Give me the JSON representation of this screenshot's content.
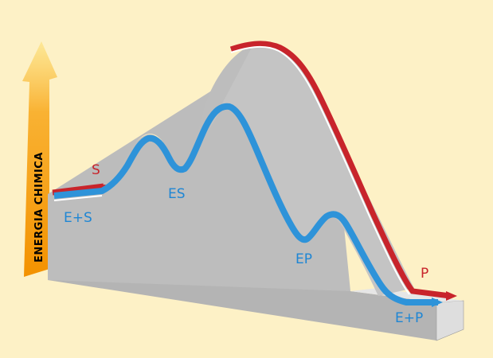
{
  "axis": {
    "label": "ENERGIA CHIMICA"
  },
  "labels": {
    "substrate": "S",
    "enzyme_substrate_start": "E+S",
    "enzyme_substrate_complex": "ES",
    "enzyme_product_complex": "EP",
    "enzyme_product_end": "E+P",
    "product": "P"
  },
  "colors": {
    "background": "#fdf1c6",
    "block_top": "#c4c4c4",
    "block_front": "#b9b9b9",
    "block_side": "#dcdcdc",
    "blue_path": "#2e93d9",
    "red_path": "#c8242b",
    "blue_text": "#1e86d4",
    "red_text": "#c8242b",
    "arrow_yellow": "#f9b233",
    "arrow_orange": "#f08a00"
  }
}
